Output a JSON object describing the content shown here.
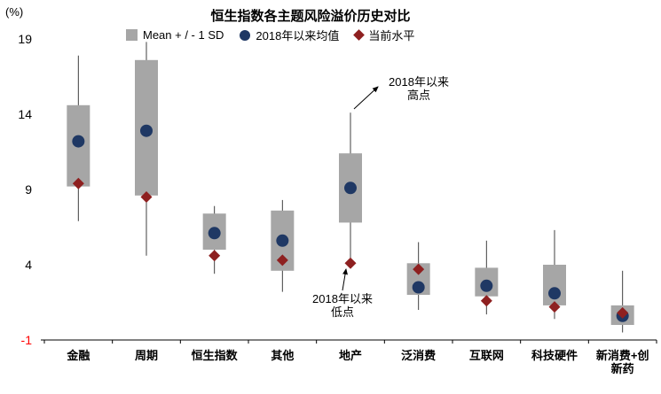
{
  "title": "恒生指数各主题风险溢价历史对比",
  "y_axis_unit": "(%)",
  "legend": [
    {
      "label": "Mean + / - 1 SD",
      "swatch": "box",
      "color": "#a6a6a6"
    },
    {
      "label": "2018年以来均值",
      "swatch": "circle",
      "color": "#1f3864"
    },
    {
      "label": "当前水平",
      "swatch": "diamond",
      "color": "#8e2020"
    }
  ],
  "annotations": {
    "high": {
      "line1": "2018年以来",
      "line2": "高点"
    },
    "low": {
      "line1": "2018年以来",
      "line2": "低点"
    }
  },
  "chart_data": {
    "type": "boxplot",
    "title": "恒生指数各主题风险溢价历史对比",
    "ylabel": "(%)",
    "ylim": [
      -1,
      19
    ],
    "grid": false,
    "legend_position": "top",
    "yticks": [
      {
        "label": "19",
        "value": 19,
        "color": "#000000"
      },
      {
        "label": "14",
        "value": 14,
        "color": "#000000"
      },
      {
        "label": "9",
        "value": 9,
        "color": "#000000"
      },
      {
        "label": "4",
        "value": 4,
        "color": "#000000"
      },
      {
        "label": "-1",
        "value": -1,
        "color": "#ff0000"
      }
    ],
    "categories": [
      "金融",
      "周期",
      "恒生指数",
      "其他",
      "地产",
      "泛消费",
      "互联网",
      "科技硬件",
      "新消费+创\n新药"
    ],
    "series": [
      {
        "name": "whisker_high",
        "values": [
          17.9,
          18.8,
          7.9,
          8.3,
          14.1,
          5.5,
          5.6,
          6.3,
          3.6
        ]
      },
      {
        "name": "mean_plus_1sd",
        "values": [
          14.6,
          17.6,
          7.4,
          7.6,
          11.4,
          4.1,
          3.8,
          4.0,
          1.3
        ]
      },
      {
        "name": "mean_since_2018",
        "values": [
          12.2,
          12.9,
          6.1,
          5.6,
          9.1,
          2.5,
          2.6,
          2.1,
          0.6
        ]
      },
      {
        "name": "mean_minus_1sd",
        "values": [
          9.2,
          8.6,
          5.0,
          3.6,
          6.8,
          2.0,
          1.9,
          1.3,
          0.0
        ]
      },
      {
        "name": "current_level",
        "values": [
          9.4,
          8.5,
          4.6,
          4.3,
          4.1,
          3.7,
          1.6,
          1.2,
          0.8
        ]
      },
      {
        "name": "whisker_low",
        "values": [
          6.9,
          4.6,
          3.4,
          2.2,
          3.9,
          1.0,
          0.7,
          0.4,
          -0.5
        ]
      }
    ],
    "colors": {
      "box": "#a6a6a6",
      "mean_dot": "#1f3864",
      "current_diamond": "#8e2020",
      "whisker": "#404040",
      "axis": "#000000"
    }
  }
}
